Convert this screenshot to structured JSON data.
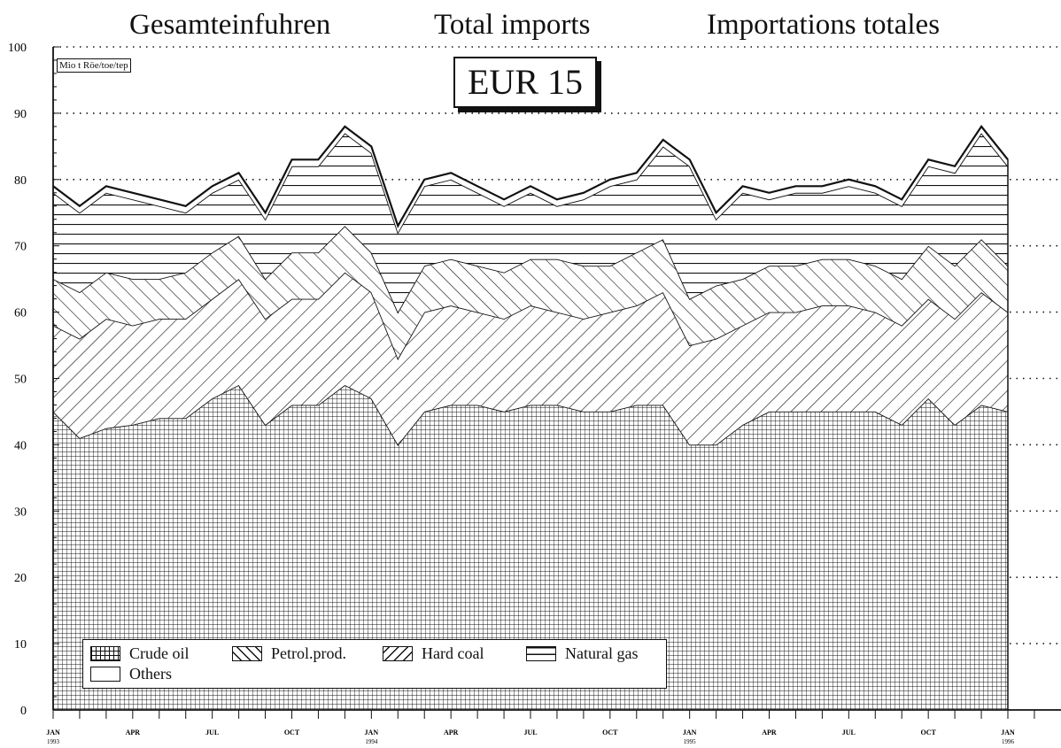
{
  "titles": {
    "de": "Gesamteinfuhren",
    "en": "Total imports",
    "fr": "Importations totales"
  },
  "unit_label": "Mio t Röe/toe/tep",
  "region": "EUR 15",
  "chart_data": {
    "type": "area",
    "stacked": true,
    "ylim": [
      0,
      100
    ],
    "y_ticks": [
      0,
      10,
      20,
      30,
      40,
      50,
      60,
      70,
      80,
      90,
      100
    ],
    "x_tick_labels": [
      {
        "month": "JAN",
        "year": "1993",
        "index": 0
      },
      {
        "month": "APR",
        "year": "",
        "index": 3
      },
      {
        "month": "JUL",
        "year": "",
        "index": 6
      },
      {
        "month": "OCT",
        "year": "",
        "index": 9
      },
      {
        "month": "JAN",
        "year": "1994",
        "index": 12
      },
      {
        "month": "APR",
        "year": "",
        "index": 15
      },
      {
        "month": "JUL",
        "year": "",
        "index": 18
      },
      {
        "month": "OCT",
        "year": "",
        "index": 21
      },
      {
        "month": "JAN",
        "year": "1995",
        "index": 24
      },
      {
        "month": "APR",
        "year": "",
        "index": 27
      },
      {
        "month": "JUL",
        "year": "",
        "index": 30
      },
      {
        "month": "OCT",
        "year": "",
        "index": 33
      },
      {
        "month": "JAN",
        "year": "1996",
        "index": 36
      }
    ],
    "x": [
      "1993-01",
      "1993-02",
      "1993-03",
      "1993-04",
      "1993-05",
      "1993-06",
      "1993-07",
      "1993-08",
      "1993-09",
      "1993-10",
      "1993-11",
      "1993-12",
      "1994-01",
      "1994-02",
      "1994-03",
      "1994-04",
      "1994-05",
      "1994-06",
      "1994-07",
      "1994-08",
      "1994-09",
      "1994-10",
      "1994-11",
      "1994-12",
      "1995-01",
      "1995-02",
      "1995-03",
      "1995-04",
      "1995-05",
      "1995-06",
      "1995-07",
      "1995-08",
      "1995-09",
      "1995-10",
      "1995-11",
      "1995-12",
      "1996-01"
    ],
    "legend_position": "bottom-left",
    "grid": "horizontal dotted at 10-unit intervals",
    "series_cumulative_tops": [
      {
        "name": "Crude oil",
        "pattern": "grid",
        "values": [
          45,
          41,
          42.5,
          43,
          44,
          44,
          47,
          49,
          43,
          46,
          46,
          49,
          47,
          40,
          45,
          46,
          46,
          45,
          46,
          46,
          45,
          45,
          46,
          46,
          40,
          40,
          43,
          45,
          45,
          45,
          45,
          45,
          43,
          47,
          43,
          46,
          45
        ]
      },
      {
        "name": "Petrol.prod.",
        "pattern": "diagonal-down",
        "values": [
          58,
          56,
          59,
          58,
          59,
          59,
          62,
          65,
          59,
          62,
          62,
          66,
          63,
          53,
          60,
          61,
          60,
          59,
          61,
          60,
          59,
          60,
          61,
          63,
          55,
          56,
          58,
          60,
          60,
          61,
          61,
          60,
          58,
          62,
          59,
          63,
          60
        ]
      },
      {
        "name": "Hard coal",
        "pattern": "diagonal-up",
        "values": [
          65,
          63,
          66,
          65,
          65,
          66,
          69,
          71.5,
          65,
          69,
          69,
          73,
          69,
          60,
          67,
          68,
          67,
          66,
          68,
          68,
          67,
          67,
          69,
          71,
          62,
          64,
          65,
          67,
          67,
          68,
          68,
          67,
          65,
          70,
          67,
          71,
          67
        ]
      },
      {
        "name": "Natural gas",
        "pattern": "horizontal",
        "values": [
          78,
          75,
          78,
          77,
          76,
          75,
          78,
          80,
          74,
          82,
          82,
          87,
          84,
          72,
          79,
          80,
          78,
          76,
          78,
          76,
          77,
          79,
          80,
          85,
          82,
          74,
          78,
          77,
          78,
          78,
          79,
          78,
          76,
          82,
          81,
          87,
          82
        ]
      },
      {
        "name": "Others",
        "pattern": "blank",
        "values": [
          79,
          76,
          79,
          78,
          77,
          76,
          79,
          81,
          75,
          83,
          83,
          88,
          85,
          73,
          80,
          81,
          79,
          77,
          79,
          77,
          78,
          80,
          81,
          86,
          83,
          75,
          79,
          78,
          79,
          79,
          80,
          79,
          77,
          83,
          82,
          88,
          83
        ]
      }
    ]
  }
}
